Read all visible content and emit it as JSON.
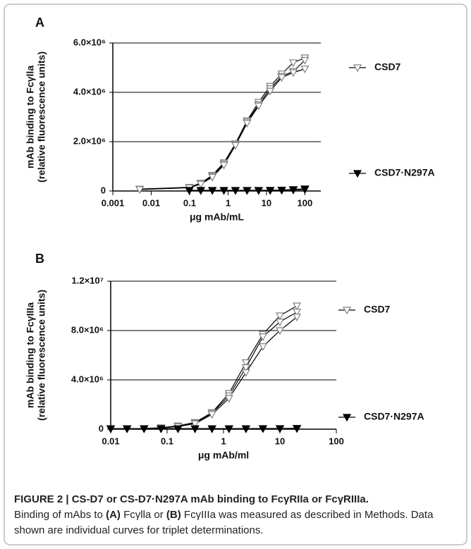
{
  "chart_data": [
    {
      "type": "line",
      "panel": "A",
      "xlabel": "μg mAb/mL",
      "ylabel": [
        "mAb binding to Fcγlla",
        "(relative fluorescence units)"
      ],
      "xscale": "log",
      "xlim": [
        0.001,
        260
      ],
      "xticks": [
        0.001,
        0.01,
        0.1,
        1,
        10,
        100
      ],
      "ylim": [
        0,
        6000000
      ],
      "yticks": [
        0,
        {
          "value": 2000000,
          "label": "2.0×10⁶"
        },
        {
          "value": 4000000,
          "label": "4.0×10⁶"
        },
        {
          "value": 6000000,
          "label": "6.0×10⁶"
        }
      ],
      "grid": true,
      "x": [
        0.005,
        0.098,
        0.195,
        0.39,
        0.78,
        1.56,
        3.125,
        6.25,
        12.5,
        25,
        50,
        100
      ],
      "series": [
        {
          "name": "CSD7",
          "color": "#808080",
          "marker": "open",
          "replicates": [
            [
              80000,
              150000,
              320000,
              640000,
              1150000,
              1920000,
              2850000,
              3600000,
              4250000,
              4750000,
              5200000,
              5400000
            ],
            [
              70000,
              140000,
              300000,
              600000,
              1100000,
              1880000,
              2800000,
              3500000,
              4150000,
              4650000,
              4850000,
              5300000
            ],
            [
              60000,
              130000,
              280000,
              560000,
              1050000,
              1850000,
              2750000,
              3450000,
              4050000,
              4600000,
              4800000,
              4950000
            ]
          ]
        },
        {
          "name": "CSD7·N297A",
          "color": "#000000",
          "marker": "filled",
          "replicates": [
            [
              null,
              30000,
              30000,
              30000,
              30000,
              30000,
              30000,
              30000,
              30000,
              40000,
              60000,
              90000
            ],
            [
              null,
              20000,
              20000,
              20000,
              20000,
              20000,
              20000,
              20000,
              30000,
              30000,
              50000,
              70000
            ],
            [
              null,
              20000,
              20000,
              20000,
              20000,
              20000,
              20000,
              20000,
              20000,
              30000,
              40000,
              60000
            ]
          ]
        }
      ]
    },
    {
      "type": "line",
      "panel": "B",
      "xlabel": "μg mAb/ml",
      "ylabel": [
        "mAb binding to FcγIIIa",
        "(relative fluorescence units)"
      ],
      "xscale": "log",
      "xlim": [
        0.01,
        100
      ],
      "xticks": [
        0.01,
        0.1,
        1,
        10,
        100
      ],
      "ylim": [
        0,
        12000000
      ],
      "yticks": [
        0,
        {
          "value": 4000000,
          "label": "4.0×10⁶"
        },
        {
          "value": 8000000,
          "label": "8.0×10⁶"
        },
        {
          "value": 12000000,
          "label": "1.2×10⁷"
        }
      ],
      "grid": true,
      "x": [
        0.01,
        0.0195,
        0.039,
        0.078,
        0.156,
        0.3125,
        0.625,
        1.25,
        2.5,
        5,
        10,
        20
      ],
      "series": [
        {
          "name": "CSD7",
          "color": "#808080",
          "marker": "open",
          "replicates": [
            [
              50000,
              50000,
              60000,
              120000,
              270000,
              550000,
              1350000,
              2900000,
              5400000,
              7700000,
              9200000,
              10000000
            ],
            [
              40000,
              50000,
              50000,
              100000,
              240000,
              500000,
              1300000,
              2700000,
              5000000,
              7500000,
              8700000,
              9500000
            ],
            [
              40000,
              40000,
              50000,
              90000,
              210000,
              450000,
              1200000,
              2500000,
              4600000,
              6700000,
              8000000,
              9100000
            ]
          ]
        },
        {
          "name": "CSD7·N297A",
          "color": "#000000",
          "marker": "filled",
          "replicates": [
            [
              50000,
              50000,
              50000,
              50000,
              50000,
              50000,
              50000,
              50000,
              50000,
              60000,
              60000,
              70000
            ],
            [
              40000,
              40000,
              40000,
              40000,
              40000,
              40000,
              40000,
              40000,
              40000,
              50000,
              50000,
              60000
            ],
            [
              30000,
              30000,
              30000,
              30000,
              30000,
              30000,
              30000,
              30000,
              30000,
              40000,
              40000,
              50000
            ]
          ]
        }
      ]
    }
  ],
  "caption": {
    "title": "FIGURE 2 | CS-D7 or CS-D7·N297A mAb binding to FcγRIIa or FcγRIIIa.",
    "text_parts": [
      "Binding of mAbs to ",
      "(A)",
      " Fcγlla or ",
      "(B)",
      " FcγIIIa was measured as described in Methods. Data shown are individual curves for triplet determinations."
    ]
  }
}
